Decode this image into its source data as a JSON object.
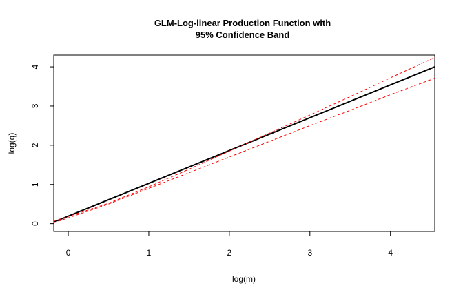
{
  "chart_data": {
    "type": "line",
    "title": [
      "GLM-Log-linear Production Function with",
      "95% Confidence Band"
    ],
    "xlabel": "log(m)",
    "ylabel": "log(q)",
    "xlim": [
      -0.18,
      4.55
    ],
    "ylim": [
      -0.2,
      4.3
    ],
    "x_ticks": [
      0,
      1,
      2,
      3,
      4
    ],
    "y_ticks": [
      0,
      1,
      2,
      3,
      4
    ],
    "grid": false,
    "legend": "none",
    "colors": {
      "fit": "#000000",
      "band": "#ff0000"
    },
    "series": [
      {
        "role": "fit",
        "line_style": "solid",
        "x": [
          -0.18,
          4.55
        ],
        "y": [
          0.04,
          4.0
        ]
      },
      {
        "role": "upper",
        "line_style": "dashed",
        "x": [
          -0.18,
          0.5,
          1.0,
          1.5,
          2.0,
          2.5,
          3.0,
          3.5,
          4.0,
          4.55
        ],
        "y": [
          0.06,
          0.52,
          0.94,
          1.39,
          1.85,
          2.31,
          2.77,
          3.24,
          3.72,
          4.24
        ]
      },
      {
        "role": "lower",
        "line_style": "dashed",
        "x": [
          -0.18,
          0.5,
          1.0,
          1.5,
          2.0,
          2.5,
          3.0,
          3.5,
          4.0,
          4.55
        ],
        "y": [
          0.02,
          0.5,
          0.9,
          1.3,
          1.7,
          2.1,
          2.5,
          2.89,
          3.29,
          3.71
        ]
      }
    ]
  }
}
